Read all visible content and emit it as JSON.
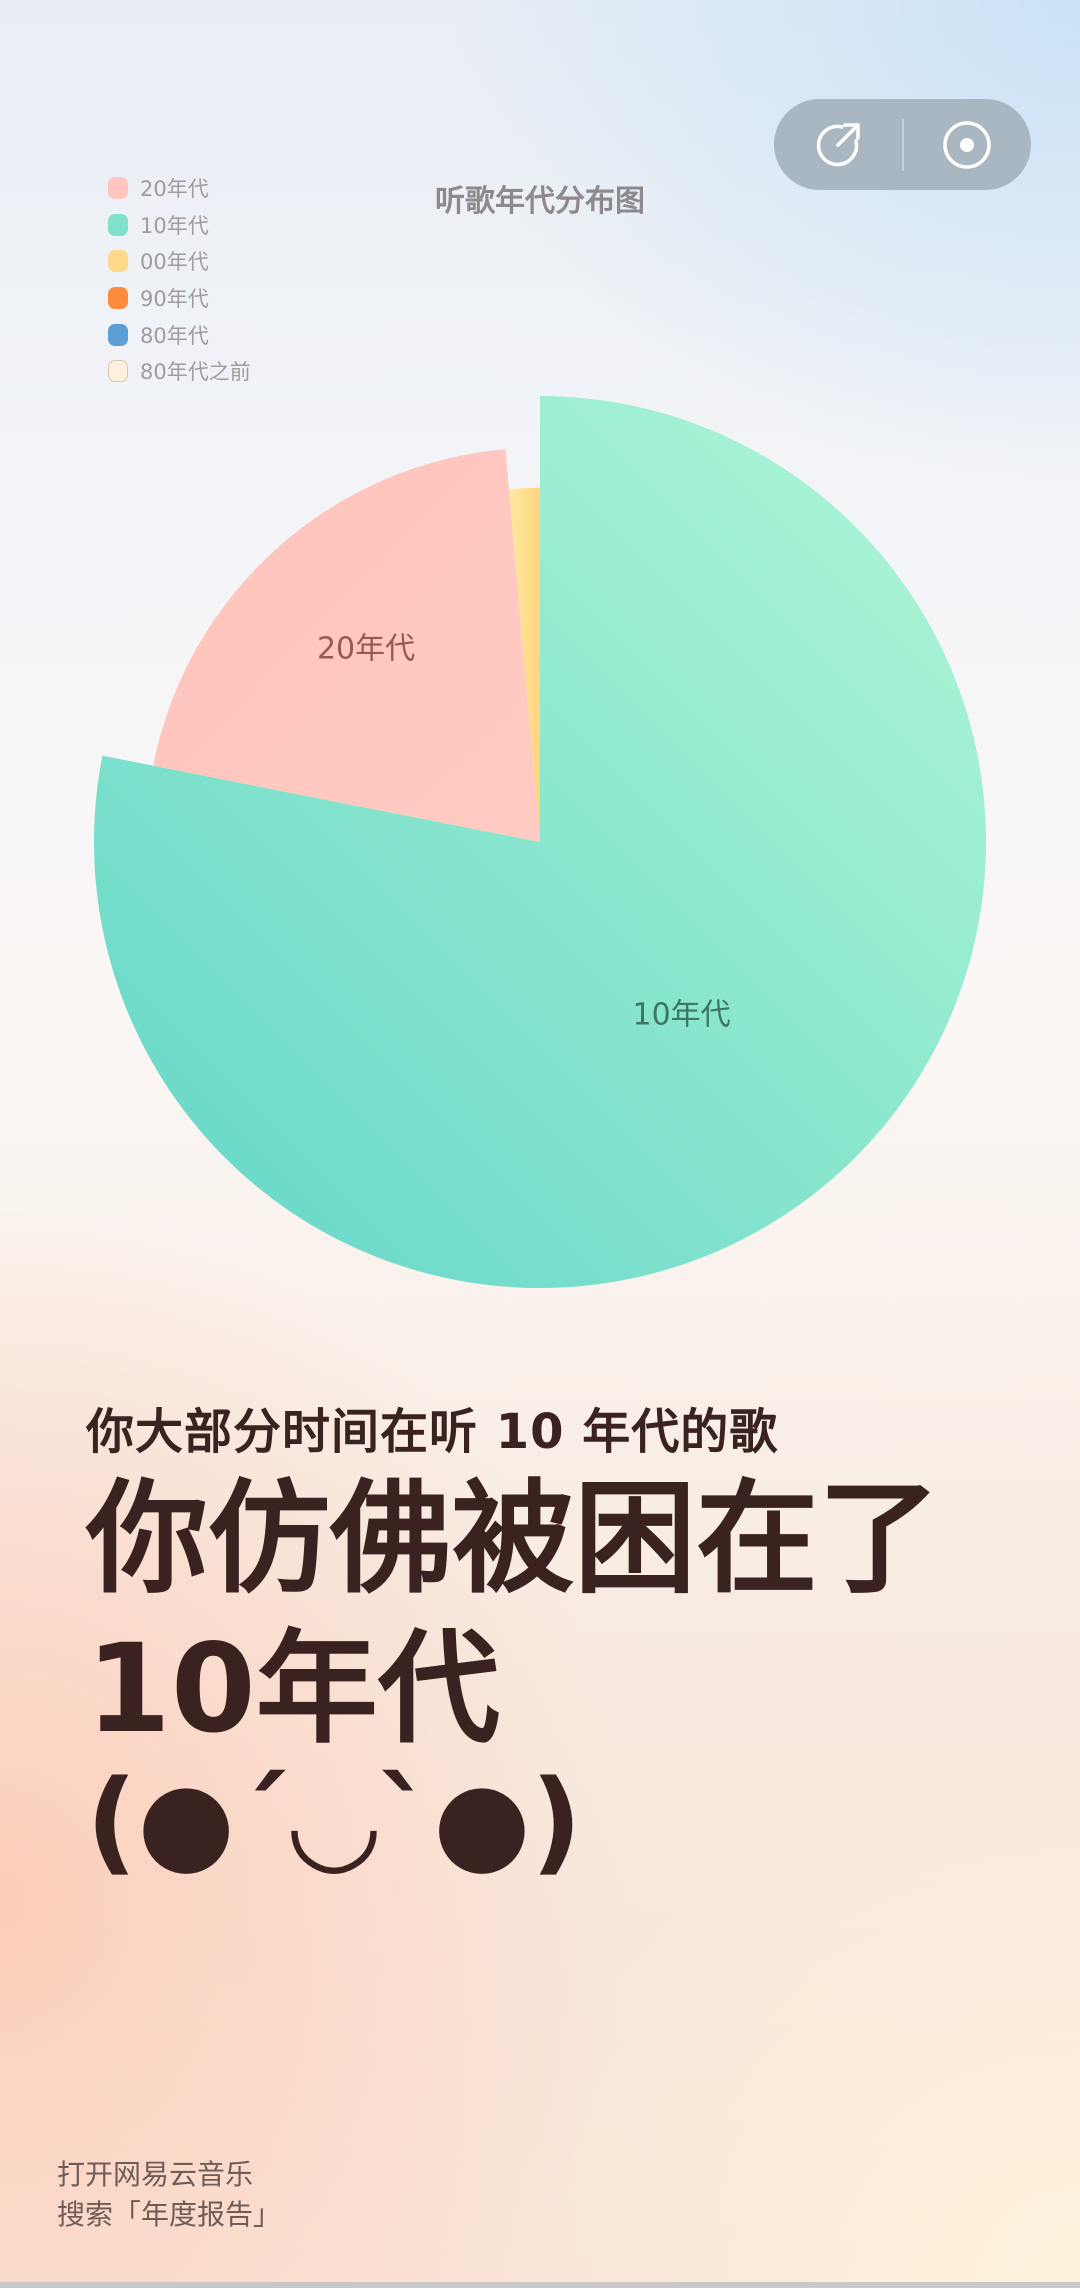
{
  "header": {
    "share_icon": "share-arrow-icon",
    "target_icon": "record-circle-icon"
  },
  "chart_data": {
    "type": "pie",
    "title": "听歌年代分布图",
    "legend_position": "top-left",
    "categories": [
      "20年代",
      "10年代",
      "00年代",
      "90年代",
      "80年代",
      "80年代之前"
    ],
    "values": [
      20.5,
      78.1,
      1.4,
      0,
      0,
      0
    ],
    "unit": "%",
    "colors": [
      "#ffc5bf",
      "#7fe0cb",
      "#ffd98a",
      "#ff8c3c",
      "#5e9ed6",
      "#fdf0dc"
    ],
    "labels_shown": [
      "20年代",
      "10年代"
    ],
    "rose_type": "radius"
  },
  "main": {
    "subtitle": "你大部分时间在听 10 年代的歌",
    "headline_1": "你仿佛被困在了",
    "headline_2": "10年代",
    "emoticon": "(●ˊ◡ˋ●)"
  },
  "footer": {
    "line_1": "打开网易云音乐",
    "line_2": "搜索「年度报告」"
  }
}
